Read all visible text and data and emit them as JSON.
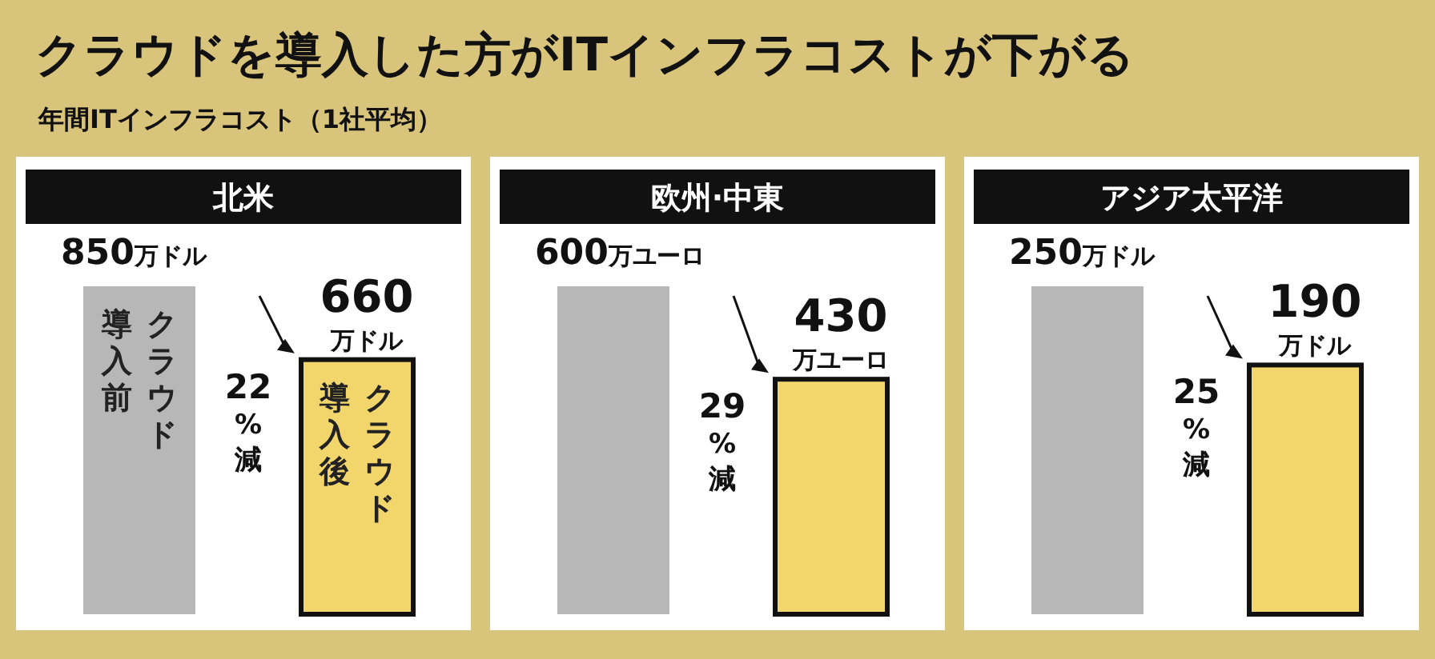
{
  "chart_data": [
    {
      "type": "other",
      "title": "クラウドを導入した方がITインフラコストが下がる",
      "subtitle": "年間ITインフラコスト（1社平均）"
    },
    {
      "type": "bar",
      "title": "北米",
      "categories": [
        "クラウド導入前",
        "クラウド導入後"
      ],
      "values": [
        850,
        660
      ],
      "colors": [
        "#b7b7b7",
        "#f2d66b"
      ],
      "value_labels": [
        "850万ドル",
        "660万ドル"
      ],
      "annotations": [
        "22%減"
      ]
    },
    {
      "type": "bar",
      "title": "欧州·中東",
      "categories": [
        null,
        null
      ],
      "values": [
        600,
        430
      ],
      "colors": [
        "#b7b7b7",
        "#f2d66b"
      ],
      "value_labels": [
        "600万ユーロ",
        "430万ユーロ"
      ],
      "annotations": [
        "29%減"
      ]
    },
    {
      "type": "bar",
      "title": "アジア太平洋",
      "categories": [
        null,
        null
      ],
      "values": [
        250,
        190
      ],
      "colors": [
        "#b7b7b7",
        "#f2d66b"
      ],
      "value_labels": [
        "250万ドル",
        "190万ドル"
      ],
      "annotations": [
        "25%減"
      ]
    }
  ]
}
